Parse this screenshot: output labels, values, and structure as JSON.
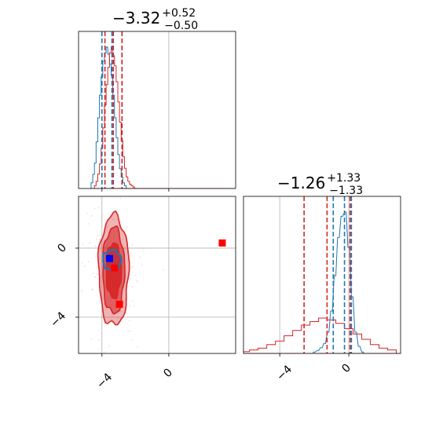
{
  "chart_data": [
    {
      "panel": "marginal-param1",
      "type": "histogram",
      "title": {
        "median": "−3.32",
        "plus": "+0.52",
        "minus": "−0.50"
      },
      "xlim": [
        -5.4,
        4.0
      ],
      "grid": true,
      "series": [
        {
          "color": "#1f77b4",
          "quantiles": [
            -4.0,
            -3.4,
            -2.8
          ],
          "bins": [
            [
              -4.6,
              0.04
            ],
            [
              -4.5,
              0.1
            ],
            [
              -4.4,
              0.18
            ],
            [
              -4.3,
              0.33
            ],
            [
              -4.2,
              0.5
            ],
            [
              -4.1,
              0.66
            ],
            [
              -4.0,
              0.79
            ],
            [
              -3.9,
              0.9
            ],
            [
              -3.8,
              0.96
            ],
            [
              -3.7,
              1.0
            ],
            [
              -3.6,
              0.95
            ],
            [
              -3.5,
              0.88
            ],
            [
              -3.4,
              0.8
            ],
            [
              -3.3,
              0.66
            ],
            [
              -3.2,
              0.5
            ],
            [
              -3.1,
              0.36
            ],
            [
              -3.0,
              0.24
            ],
            [
              -2.9,
              0.14
            ],
            [
              -2.8,
              0.08
            ],
            [
              -2.7,
              0.04
            ],
            [
              -2.6,
              0.02
            ]
          ]
        },
        {
          "color": "#d62728",
          "quantiles": [
            -3.82,
            -3.32,
            -2.8
          ],
          "bins": [
            [
              -4.4,
              0.02
            ],
            [
              -4.3,
              0.05
            ],
            [
              -4.2,
              0.1
            ],
            [
              -4.1,
              0.17
            ],
            [
              -4.0,
              0.28
            ],
            [
              -3.9,
              0.42
            ],
            [
              -3.8,
              0.58
            ],
            [
              -3.7,
              0.72
            ],
            [
              -3.6,
              0.84
            ],
            [
              -3.5,
              0.94
            ],
            [
              -3.4,
              0.98
            ],
            [
              -3.3,
              0.92
            ],
            [
              -3.2,
              0.85
            ],
            [
              -3.1,
              0.74
            ],
            [
              -3.0,
              0.6
            ],
            [
              -2.9,
              0.46
            ],
            [
              -2.8,
              0.33
            ],
            [
              -2.7,
              0.22
            ],
            [
              -2.6,
              0.14
            ],
            [
              -2.5,
              0.08
            ],
            [
              -2.4,
              0.05
            ],
            [
              -2.3,
              0.03
            ],
            [
              -2.2,
              0.02
            ],
            [
              -2.1,
              0.01
            ]
          ]
        }
      ]
    },
    {
      "panel": "joint-param1-param2",
      "type": "contour",
      "xlim": [
        -5.4,
        4.0
      ],
      "ylim": [
        -6.1,
        3.0
      ],
      "xticks": [
        -4,
        0
      ],
      "yticks": [
        0,
        -4
      ],
      "grid": true,
      "series": [
        {
          "color": "#d62728",
          "center": [
            -3.3,
            -1.3
          ],
          "levels": [
            {
              "rx": 0.9,
              "ry": 3.2,
              "opacity": 0.35
            },
            {
              "rx": 0.65,
              "ry": 2.5,
              "opacity": 0.6
            },
            {
              "rx": 0.45,
              "ry": 1.6,
              "opacity": 0.95
            }
          ]
        },
        {
          "color": "#1f77b4",
          "center": [
            -3.4,
            -0.7
          ],
          "levels": [
            {
              "rx": 0.55,
              "ry": 0.6,
              "opacity": 0.9
            }
          ]
        }
      ],
      "markers": [
        {
          "x": -3.55,
          "y": -0.6,
          "color": "#0000ff"
        },
        {
          "x": -3.25,
          "y": -1.15,
          "color": "#ff0000"
        },
        {
          "x": -2.95,
          "y": -3.25,
          "color": "#ff0000"
        },
        {
          "x": 3.2,
          "y": 0.3,
          "color": "#ff0000"
        }
      ]
    },
    {
      "panel": "marginal-param2",
      "type": "histogram",
      "title": {
        "median": "−1.26",
        "plus": "+1.33",
        "minus": "−1.33"
      },
      "xlim": [
        -6.1,
        3.0
      ],
      "xticks": [
        -4,
        0
      ],
      "grid": true,
      "series": [
        {
          "color": "#1f77b4",
          "quantiles": [
            -0.9,
            -0.25,
            0.15
          ],
          "bins": [
            [
              -2.0,
              0.01
            ],
            [
              -1.8,
              0.02
            ],
            [
              -1.6,
              0.04
            ],
            [
              -1.4,
              0.07
            ],
            [
              -1.2,
              0.15
            ],
            [
              -1.0,
              0.3
            ],
            [
              -0.8,
              0.55
            ],
            [
              -0.6,
              0.82
            ],
            [
              -0.4,
              0.97
            ],
            [
              -0.2,
              1.0
            ],
            [
              0.0,
              0.75
            ],
            [
              0.2,
              0.4
            ],
            [
              0.4,
              0.15
            ],
            [
              0.6,
              0.05
            ],
            [
              0.8,
              0.01
            ]
          ]
        },
        {
          "color": "#d62728",
          "quantiles": [
            -2.59,
            -1.26,
            0.07
          ],
          "bins": [
            [
              -6.0,
              0.01
            ],
            [
              -5.5,
              0.02
            ],
            [
              -5.0,
              0.03
            ],
            [
              -4.5,
              0.05
            ],
            [
              -4.0,
              0.07
            ],
            [
              -3.5,
              0.1
            ],
            [
              -3.0,
              0.13
            ],
            [
              -2.5,
              0.16
            ],
            [
              -2.0,
              0.18
            ],
            [
              -1.5,
              0.2
            ],
            [
              -1.0,
              0.19
            ],
            [
              -0.5,
              0.17
            ],
            [
              0.0,
              0.14
            ],
            [
              0.5,
              0.11
            ],
            [
              1.0,
              0.08
            ],
            [
              1.5,
              0.05
            ],
            [
              2.0,
              0.03
            ],
            [
              2.5,
              0.02
            ]
          ]
        }
      ]
    }
  ],
  "tick_labels": {
    "x1": [
      "−4",
      "0"
    ],
    "y1": [
      "0",
      "−4"
    ],
    "x2": [
      "−4",
      "0"
    ]
  }
}
